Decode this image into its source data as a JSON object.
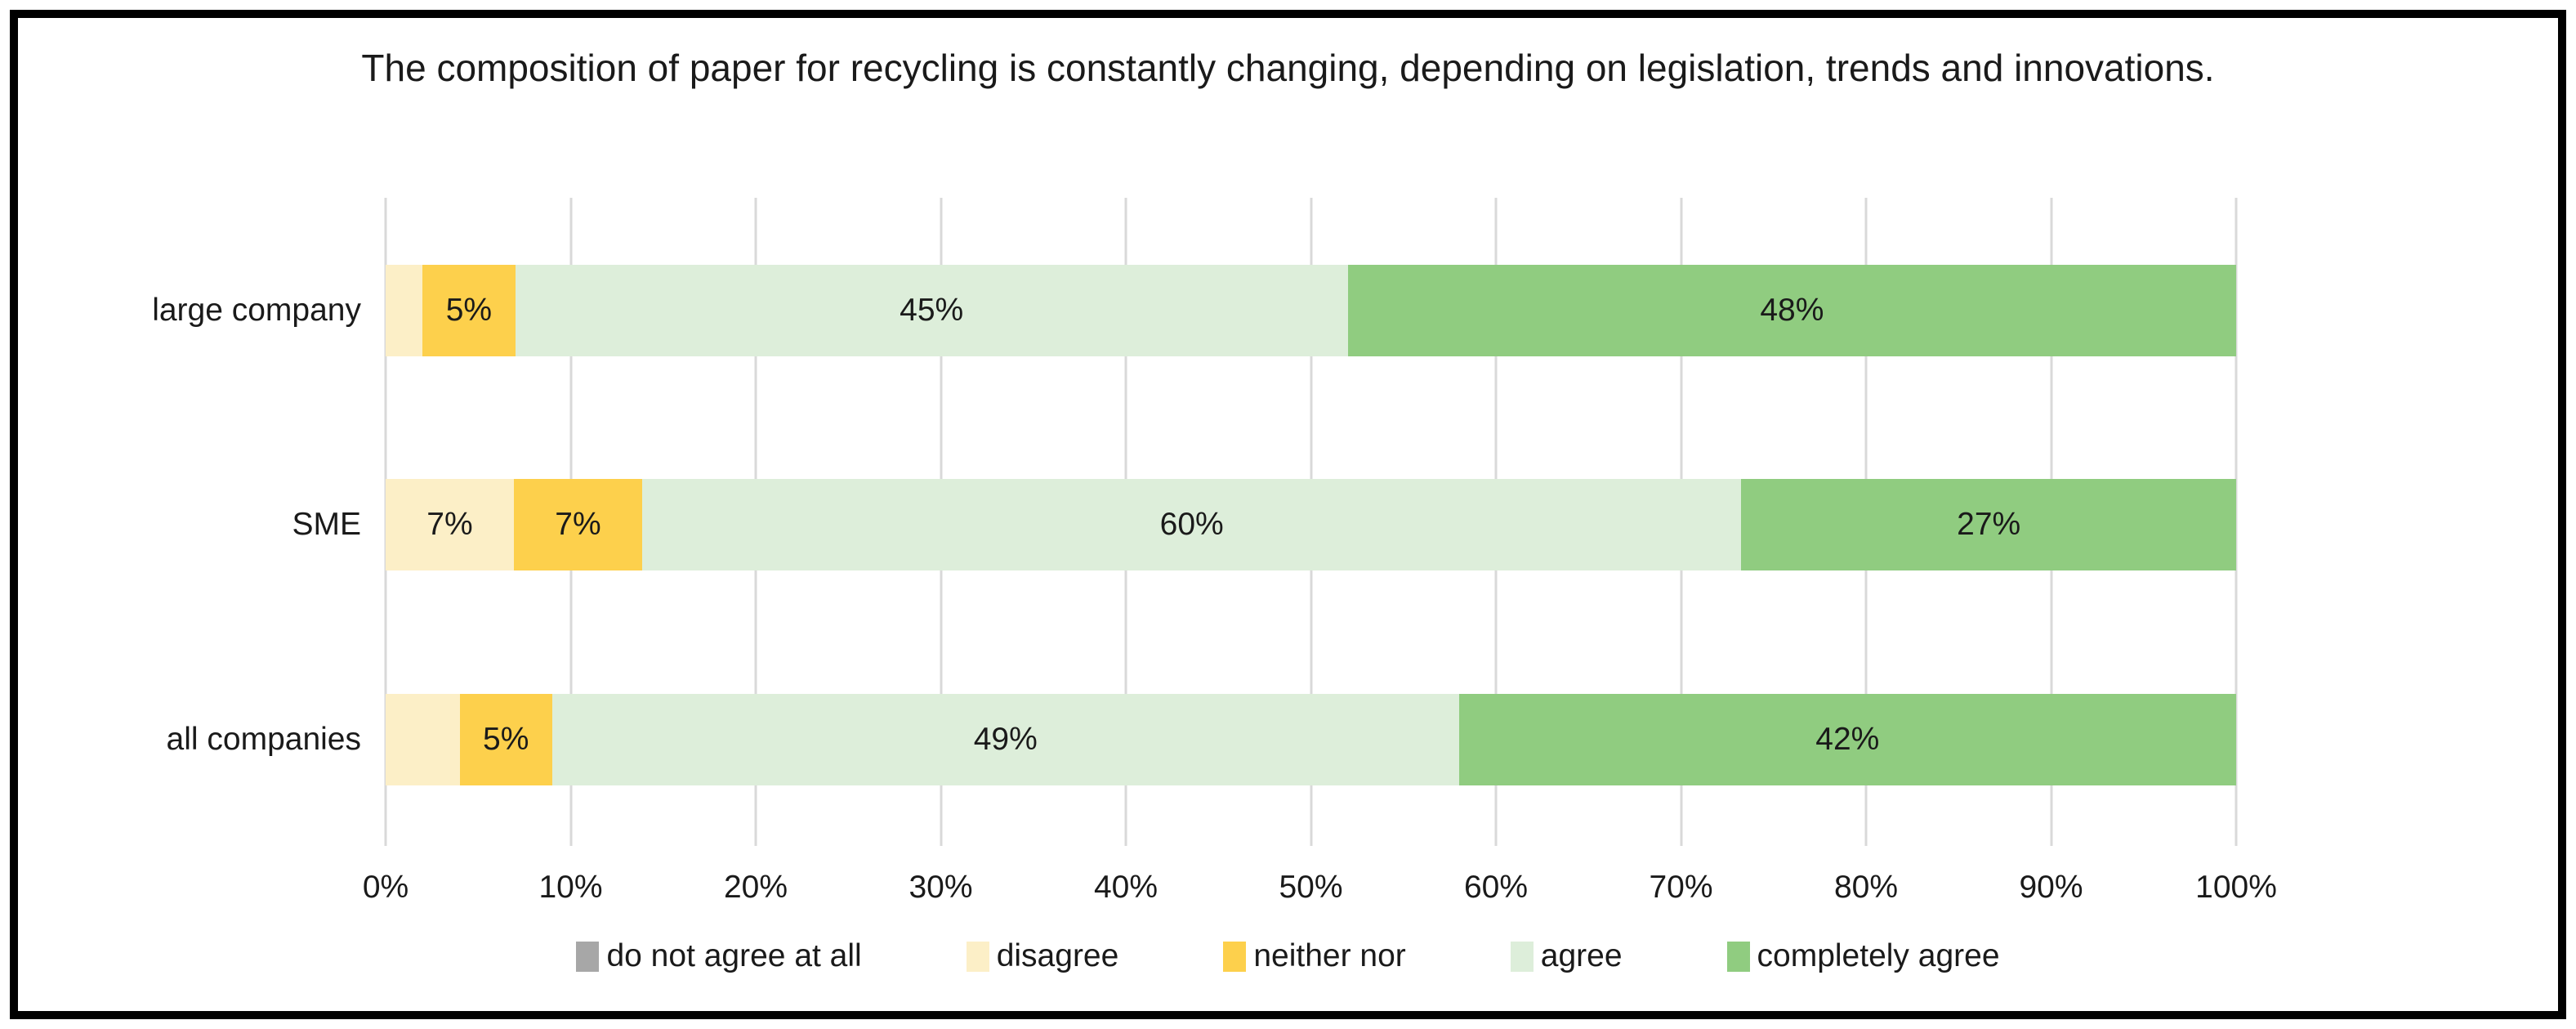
{
  "page": {
    "background_color": "#ffffff",
    "frame_border_color": "#000000"
  },
  "colors": {
    "gridline": "#d9d9d9",
    "text": "#1a1a1a"
  },
  "chart_data": {
    "type": "bar",
    "orientation": "horizontal-stacked",
    "title": "The composition of paper for recycling is constantly changing, depending on legislation, trends and innovations.",
    "categories": [
      "large company",
      "SME",
      "all companies"
    ],
    "series": [
      {
        "name": "do not agree at all",
        "color": "#a7a7a7",
        "values": [
          0,
          0,
          0
        ],
        "labels": [
          "",
          "",
          ""
        ]
      },
      {
        "name": "disagree",
        "color": "#fcefc7",
        "values": [
          2,
          7,
          4
        ],
        "labels": [
          "",
          "7%",
          ""
        ]
      },
      {
        "name": "neither nor",
        "color": "#fdd04c",
        "values": [
          5,
          7,
          5
        ],
        "labels": [
          "5%",
          "7%",
          "5%"
        ]
      },
      {
        "name": "agree",
        "color": "#ddeeda",
        "values": [
          45,
          60,
          49
        ],
        "labels": [
          "45%",
          "60%",
          "49%"
        ]
      },
      {
        "name": "completely agree",
        "color": "#90cc80",
        "values": [
          48,
          27,
          42
        ],
        "labels": [
          "48%",
          "27%",
          "42%"
        ]
      }
    ],
    "x_ticks": [
      "0%",
      "10%",
      "20%",
      "30%",
      "40%",
      "50%",
      "60%",
      "70%",
      "80%",
      "90%",
      "100%"
    ],
    "xlim": [
      0,
      100
    ],
    "grid": true,
    "legend_position": "bottom"
  }
}
